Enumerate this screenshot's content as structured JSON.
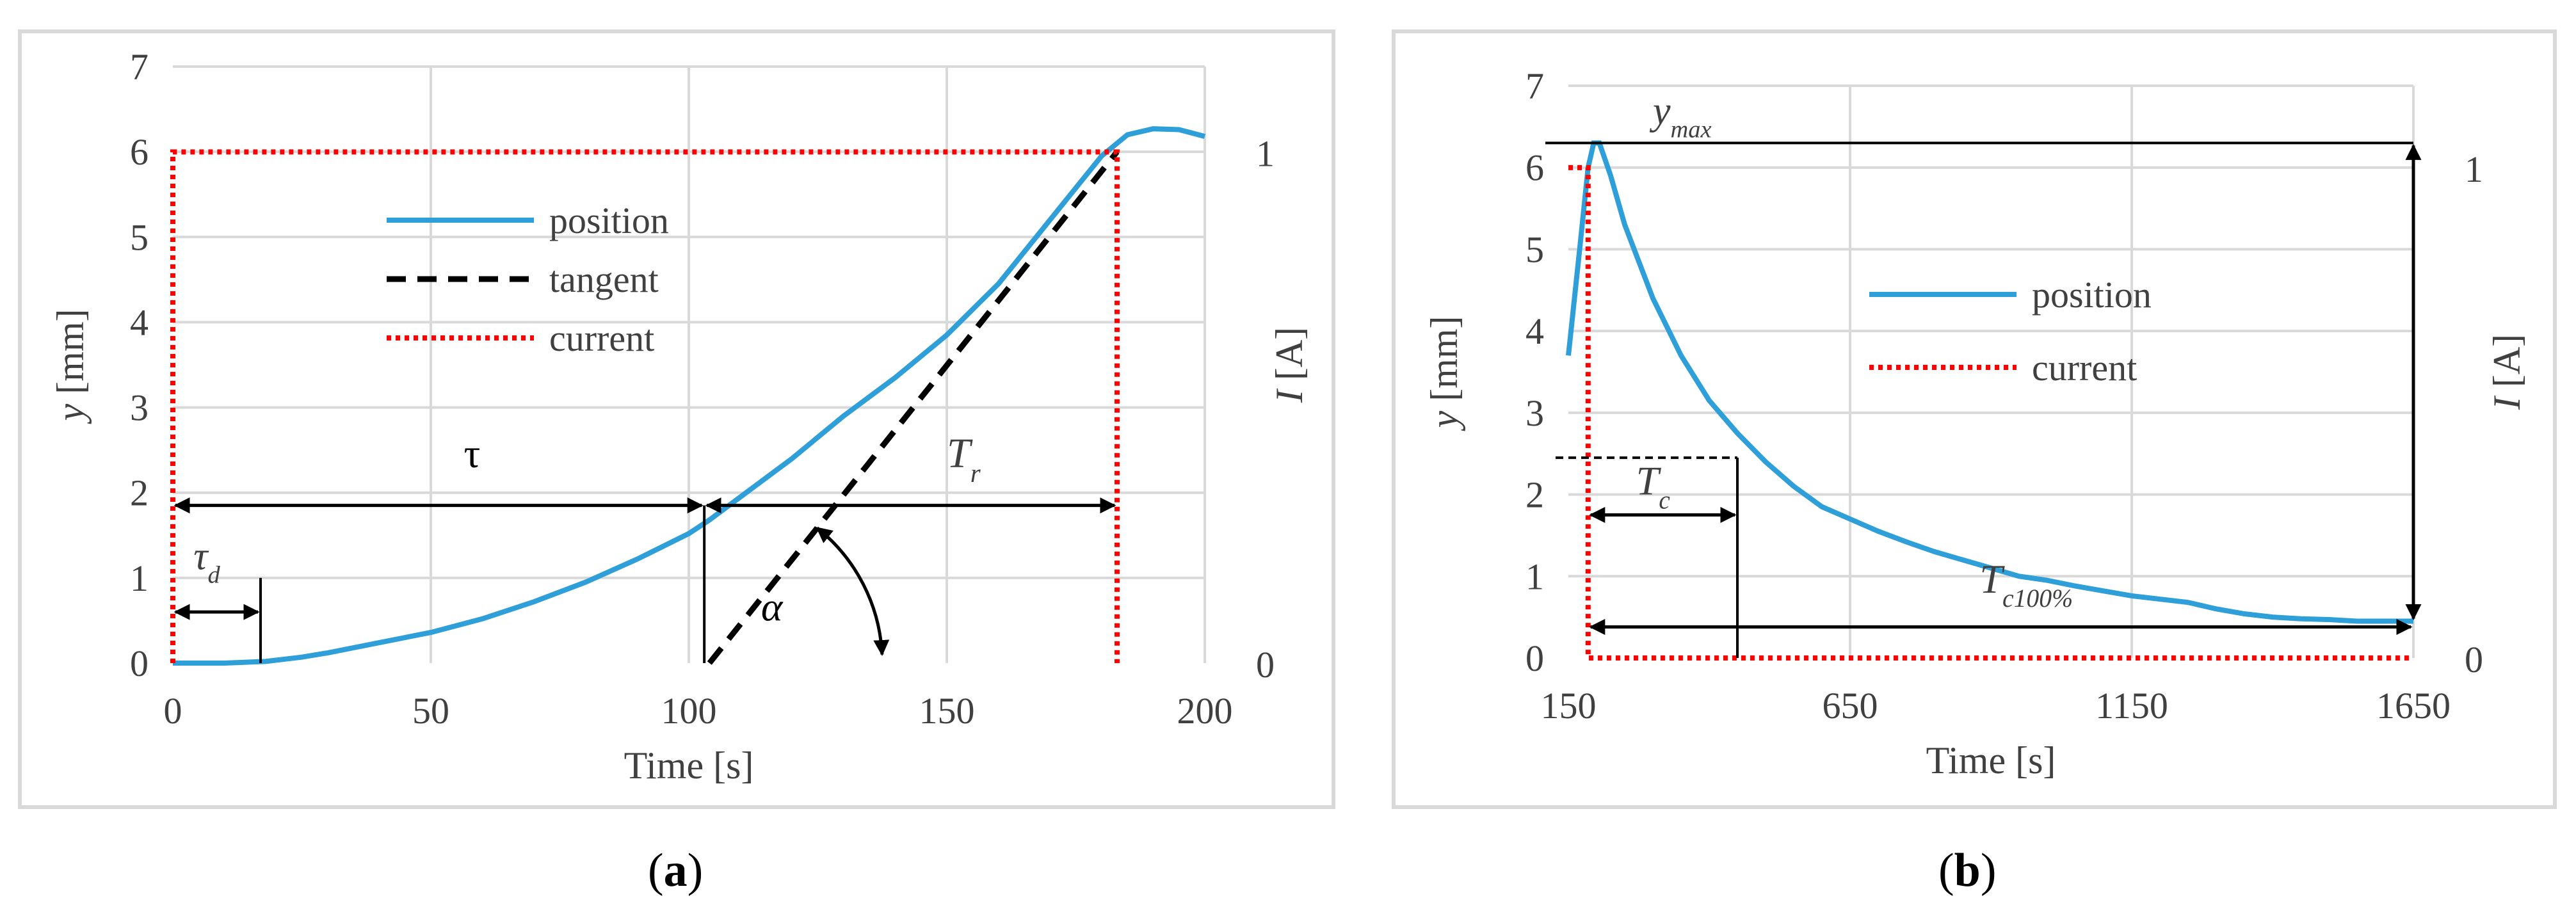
{
  "chart_data": [
    {
      "panel": "a",
      "type": "line",
      "caption": "(a)",
      "xlabel": "Time [s]",
      "ylabel": "y [mm]",
      "ylabel2": "I [A]",
      "xlim": [
        0,
        200
      ],
      "ylim": [
        0,
        7
      ],
      "y2lim": [
        0,
        1.167
      ],
      "x_ticks": [
        "0",
        "50",
        "100",
        "150",
        "200"
      ],
      "y_ticks": [
        "0",
        "1",
        "2",
        "3",
        "4",
        "5",
        "6",
        "7"
      ],
      "y2_ticks": [
        "0",
        "1"
      ],
      "grid": true,
      "legend_position": "center-left",
      "series": [
        {
          "name": "position",
          "color": "#2E9FD8",
          "style": "solid",
          "x": [
            0,
            10,
            18,
            25,
            30,
            40,
            50,
            60,
            70,
            80,
            90,
            100,
            104,
            110,
            120,
            130,
            140,
            150,
            160,
            170,
            180,
            185,
            190,
            195,
            200
          ],
          "y": [
            0,
            0,
            0.02,
            0.07,
            0.12,
            0.24,
            0.36,
            0.52,
            0.72,
            0.95,
            1.22,
            1.52,
            1.68,
            1.95,
            2.4,
            2.9,
            3.35,
            3.85,
            4.45,
            5.2,
            5.95,
            6.2,
            6.27,
            6.26,
            6.18
          ]
        },
        {
          "name": "tangent",
          "color": "#000000",
          "style": "dashed",
          "x": [
            104,
            183
          ],
          "y": [
            0,
            6
          ]
        },
        {
          "name": "current",
          "color": "#FF0000",
          "style": "dotted",
          "axis": "right",
          "x": [
            0,
            0,
            183,
            183
          ],
          "y": [
            0,
            1,
            1,
            0
          ]
        }
      ],
      "annotations": {
        "tau": "τ",
        "tau_d_base": "τ",
        "tau_d_sub": "d",
        "t_r_base": "T",
        "t_r_sub": "r",
        "alpha": "α"
      }
    },
    {
      "panel": "b",
      "type": "line",
      "caption": "(b)",
      "xlabel": "Time [s]",
      "ylabel": "y [mm]",
      "ylabel2": "I [A]",
      "xlim": [
        150,
        1650
      ],
      "ylim": [
        0,
        7
      ],
      "y2lim": [
        0,
        1.167
      ],
      "x_ticks": [
        "150",
        "650",
        "1150",
        "1650"
      ],
      "y_ticks": [
        "0",
        "1",
        "2",
        "3",
        "4",
        "5",
        "6",
        "7"
      ],
      "y2_ticks": [
        "0",
        "1"
      ],
      "grid": true,
      "legend_position": "center",
      "series": [
        {
          "name": "position",
          "color": "#2E9FD8",
          "style": "solid",
          "x": [
            150,
            170,
            185,
            195,
            205,
            225,
            250,
            300,
            350,
            400,
            450,
            500,
            550,
            600,
            650,
            700,
            750,
            800,
            850,
            900,
            950,
            1000,
            1050,
            1100,
            1150,
            1200,
            1250,
            1300,
            1350,
            1400,
            1450,
            1500,
            1550,
            1600,
            1650
          ],
          "y": [
            3.7,
            5.0,
            6.0,
            6.3,
            6.3,
            5.9,
            5.3,
            4.4,
            3.7,
            3.15,
            2.75,
            2.4,
            2.1,
            1.85,
            1.7,
            1.55,
            1.42,
            1.3,
            1.2,
            1.1,
            1.0,
            0.95,
            0.88,
            0.82,
            0.76,
            0.72,
            0.68,
            0.6,
            0.54,
            0.5,
            0.48,
            0.47,
            0.45,
            0.45,
            0.45
          ]
        },
        {
          "name": "current",
          "color": "#FF0000",
          "style": "dotted",
          "axis": "right",
          "x": [
            150,
            185,
            185,
            1650
          ],
          "y": [
            1,
            1,
            0,
            0
          ]
        }
      ],
      "annotations": {
        "y_max_base": "y",
        "y_max_sub": "max",
        "t_c_base": "T",
        "t_c_sub": "c",
        "t_c100_base": "T",
        "t_c100_sub": "c100%"
      }
    }
  ]
}
